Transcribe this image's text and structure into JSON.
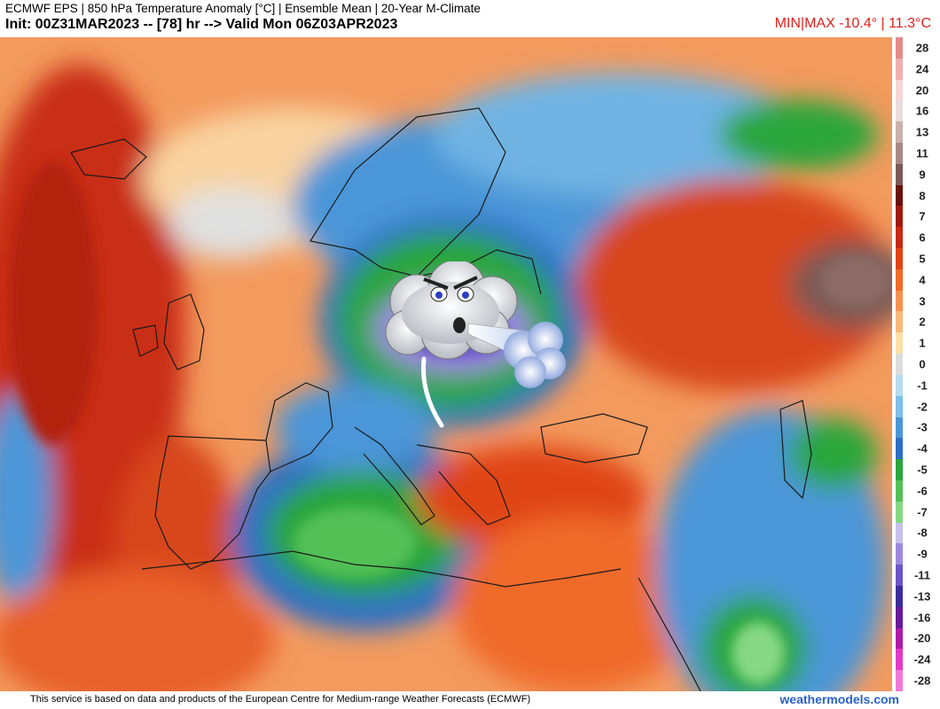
{
  "header": {
    "title_line1": "ECMWF EPS | 850 hPa Temperature Anomaly [°C] | Ensemble Mean | 20-Year M-Climate",
    "title_line2": "Init: 00Z31MAR2023 -- [78] hr --> Valid Mon 06Z03APR2023",
    "minmax": "MIN|MAX -10.4° | 11.3°C"
  },
  "legend": {
    "labels": [
      "28",
      "24",
      "20",
      "16",
      "13",
      "11",
      "9",
      "8",
      "7",
      "6",
      "5",
      "4",
      "3",
      "2",
      "1",
      "0",
      "-1",
      "-2",
      "-3",
      "-4",
      "-5",
      "-6",
      "-7",
      "-8",
      "-9",
      "-11",
      "-13",
      "-16",
      "-20",
      "-24",
      "-28"
    ],
    "colors": [
      "#e58a8a",
      "#f0b0b0",
      "#f6d7d7",
      "#eadcdc",
      "#c9b2ad",
      "#a88a84",
      "#7a5a55",
      "#6b0f0a",
      "#a11a0c",
      "#c52a12",
      "#e04515",
      "#f06a2a",
      "#f5924f",
      "#f9b878",
      "#fbe0a8",
      "#dcdcdc",
      "#b5dcef",
      "#7cbfe8",
      "#4b96d8",
      "#2e6fc4",
      "#2aa63a",
      "#53c056",
      "#86d884",
      "#c7c0ec",
      "#9d8ae0",
      "#6d55c8",
      "#3c2c9c",
      "#6a1a9a",
      "#b01aa8",
      "#e23ac8",
      "#f078d8"
    ]
  },
  "footer": {
    "credit": "This service is based on data and products of the European Centre for Medium-range Weather Forecasts (ECMWF)",
    "site": "weathermodels.com"
  }
}
